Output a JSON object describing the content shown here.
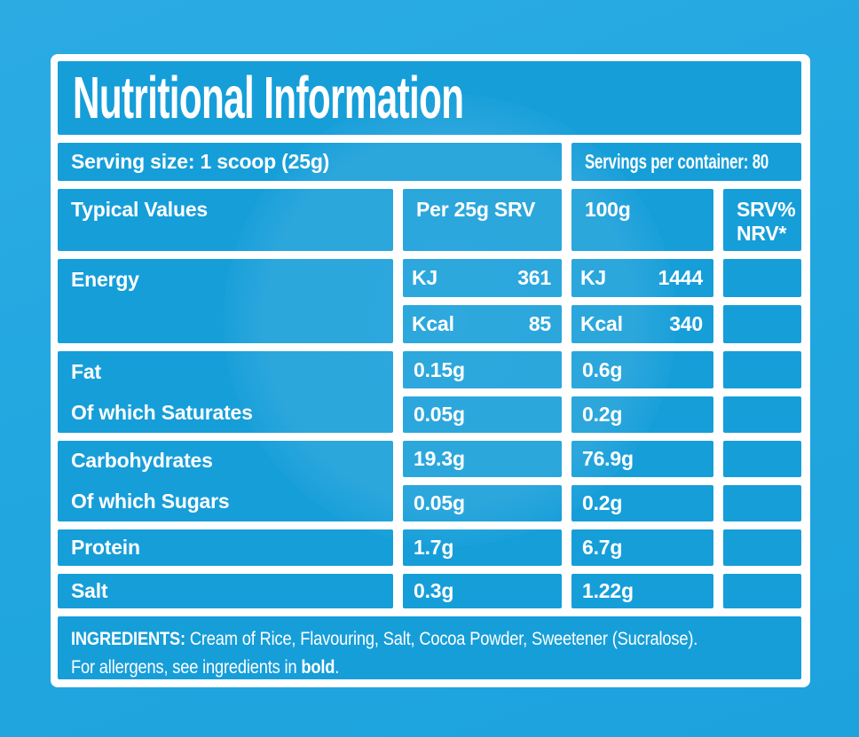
{
  "colors": {
    "background": "#22a7e0",
    "cell": "#169ed9",
    "frame": "#ffffff",
    "text": "#ffffff"
  },
  "title": "Nutritional Information",
  "serving_row": {
    "serving_size": "Serving size: 1 scoop (25g)",
    "servings_per_container": "Servings per container: 80"
  },
  "columns": {
    "typical_values": "Typical Values",
    "per_srv": "Per 25g SRV",
    "per_100g": "100g",
    "srv_nrv": "SRV%\nNRV*"
  },
  "energy": {
    "label": "Energy",
    "rows": [
      {
        "unit": "KJ",
        "srv": "361",
        "per_100g": "1444"
      },
      {
        "unit": "Kcal",
        "srv": "85",
        "per_100g": "340"
      }
    ]
  },
  "nutrients": [
    {
      "label": "Fat",
      "srv": "0.15g",
      "per_100g": "0.6g"
    },
    {
      "label": "Of which Saturates",
      "srv": "0.05g",
      "per_100g": "0.2g"
    },
    {
      "label": "Carbohydrates",
      "srv": "19.3g",
      "per_100g": "76.9g"
    },
    {
      "label": "Of which Sugars",
      "srv": "0.05g",
      "per_100g": "0.2g"
    },
    {
      "label": "Protein",
      "srv": "1.7g",
      "per_100g": "6.7g"
    },
    {
      "label": "Salt",
      "srv": "0.3g",
      "per_100g": "1.22g"
    }
  ],
  "ingredients": {
    "heading": "INGREDIENTS:",
    "line1": " Cream of Rice, Flavouring, Salt, Cocoa Powder, Sweetener (Sucralose).",
    "line2_prefix": "For allergens, see ingredients in ",
    "line2_bold": "bold",
    "line2_suffix": "."
  }
}
